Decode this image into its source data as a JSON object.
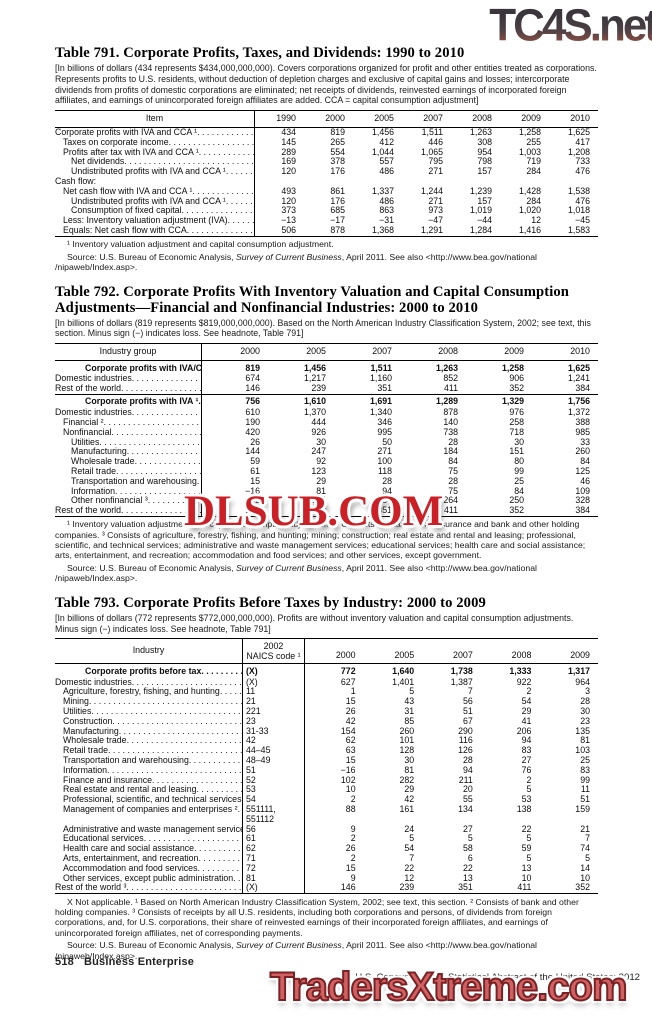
{
  "watermarks": {
    "top": "TC4S.net",
    "middle": "DLSUB.COM",
    "bottom": "TradersXtreme.com",
    "top_color_start": "#3a363b",
    "top_color_end": "#bb958e",
    "middle_color": "#cb2026",
    "bottom_color": "#cf6163",
    "bottom_outline_color": "#7a2123"
  },
  "source": {
    "pre": "Source: U.S. Bureau of Economic Analysis, ",
    "italic": "Survey of Current Business",
    "post": ", April 2011. See also <http://www.bea.gov/national /nipaweb/Index.asp>."
  },
  "table791": {
    "title": "Table 791. Corporate Profits, Taxes, and Dividends: 1990 to 2010",
    "headnote": "[In billions of dollars (434 represents $434,000,000,000). Covers corporations organized for profit and other entities treated as corporations. Represents profits to U.S. residents, without deduction of depletion charges and exclusive of capital gains and losses; intercorporate dividends from profits of domestic corporations are eliminated; net receipts of dividends, reinvested earnings of incorporated foreign affiliates, and earnings of unincorporated foreign affiliates are added. CCA = capital consumption adjustment]",
    "item_header": "Item",
    "label_w": 200,
    "years": [
      "1990",
      "2000",
      "2005",
      "2007",
      "2008",
      "2009",
      "2010"
    ],
    "rows": [
      {
        "label": "Corporate profits with IVA and CCA ¹",
        "indent": 0,
        "values": [
          "434",
          "819",
          "1,456",
          "1,511",
          "1,263",
          "1,258",
          "1,625"
        ]
      },
      {
        "label": "Taxes on corporate income",
        "indent": 1,
        "values": [
          "145",
          "265",
          "412",
          "446",
          "308",
          "255",
          "417"
        ]
      },
      {
        "label": "Profits after tax with IVA and CCA ¹",
        "indent": 1,
        "values": [
          "289",
          "554",
          "1,044",
          "1,065",
          "954",
          "1,003",
          "1,208"
        ]
      },
      {
        "label": "Net dividends",
        "indent": 2,
        "values": [
          "169",
          "378",
          "557",
          "795",
          "798",
          "719",
          "733"
        ]
      },
      {
        "label": "Undistributed profits with IVA and CCA ¹",
        "indent": 2,
        "values": [
          "120",
          "176",
          "486",
          "271",
          "157",
          "284",
          "476"
        ]
      },
      {
        "label": "Cash flow:",
        "indent": 0,
        "nodots": true,
        "values": []
      },
      {
        "label": "Net cash flow with IVA and CCA ¹",
        "indent": 1,
        "values": [
          "493",
          "861",
          "1,337",
          "1,244",
          "1,239",
          "1,428",
          "1,538"
        ]
      },
      {
        "label": "Undistributed profits with IVA and CCA ¹",
        "indent": 2,
        "values": [
          "120",
          "176",
          "486",
          "271",
          "157",
          "284",
          "476"
        ]
      },
      {
        "label": "Consumption of fixed capital",
        "indent": 2,
        "values": [
          "373",
          "685",
          "863",
          "973",
          "1,019",
          "1,020",
          "1,018"
        ]
      },
      {
        "label": "Less: Inventory valuation adjustment (IVA)",
        "indent": 1,
        "values": [
          "−13",
          "−17",
          "−31",
          "−47",
          "−44",
          "12",
          "−45"
        ]
      },
      {
        "label": "Equals: Net cash flow with CCA",
        "indent": 1,
        "values": [
          "506",
          "878",
          "1,368",
          "1,291",
          "1,284",
          "1,416",
          "1,583"
        ]
      }
    ],
    "footnote": "¹ Inventory valuation adjustment and capital consumption adjustment."
  },
  "table792": {
    "title": "Table 792. Corporate Profits With Inventory Valuation and Capital Consumption Adjustments—Financial and Nonfinancial Industries: 2000 to 2010",
    "headnote": "[In billions of dollars (819 represents $819,000,000,000). Based on the North American Industry Classification System, 2002; see text, this section. Minus sign (−) indicates loss. See headnote, Table 791]",
    "item_header": "Industry group",
    "label_w": 147,
    "years": [
      "2000",
      "2005",
      "2007",
      "2008",
      "2009",
      "2010"
    ],
    "rows": [
      {
        "label": "Corporate profits with IVA/CCA ¹",
        "indent": 3,
        "bold": true,
        "values": [
          "819",
          "1,456",
          "1,511",
          "1,263",
          "1,258",
          "1,625"
        ]
      },
      {
        "label": "Domestic industries",
        "indent": 0,
        "values": [
          "674",
          "1,217",
          "1,160",
          "852",
          "906",
          "1,241"
        ]
      },
      {
        "label": "Rest of the world",
        "indent": 0,
        "values": [
          "146",
          "239",
          "351",
          "411",
          "352",
          "384"
        ]
      },
      {
        "label": "Corporate profits with IVA ¹",
        "indent": 3,
        "bold": true,
        "rule": true,
        "values": [
          "756",
          "1,610",
          "1,691",
          "1,289",
          "1,329",
          "1,756"
        ]
      },
      {
        "label": "Domestic industries",
        "indent": 0,
        "values": [
          "610",
          "1,370",
          "1,340",
          "878",
          "976",
          "1,372"
        ]
      },
      {
        "label": "Financial ²",
        "indent": 1,
        "values": [
          "190",
          "444",
          "346",
          "140",
          "258",
          "388"
        ]
      },
      {
        "label": "Nonfinancial",
        "indent": 1,
        "values": [
          "420",
          "926",
          "995",
          "738",
          "718",
          "985"
        ]
      },
      {
        "label": "Utilities",
        "indent": 2,
        "values": [
          "26",
          "30",
          "50",
          "28",
          "30",
          "33"
        ]
      },
      {
        "label": "Manufacturing",
        "indent": 2,
        "values": [
          "144",
          "247",
          "271",
          "184",
          "151",
          "260"
        ]
      },
      {
        "label": "Wholesale trade",
        "indent": 2,
        "values": [
          "59",
          "92",
          "100",
          "84",
          "80",
          "84"
        ]
      },
      {
        "label": "Retail trade",
        "indent": 2,
        "values": [
          "61",
          "123",
          "118",
          "75",
          "99",
          "125"
        ]
      },
      {
        "label": "Transportation and warehousing",
        "indent": 2,
        "values": [
          "15",
          "29",
          "28",
          "28",
          "25",
          "46"
        ]
      },
      {
        "label": "Information",
        "indent": 2,
        "values": [
          "−16",
          "81",
          "94",
          "75",
          "84",
          "109"
        ]
      },
      {
        "label": "Other nonfinancial ³",
        "indent": 2,
        "values": [
          "132",
          "324",
          "334",
          "264",
          "250",
          "328"
        ]
      },
      {
        "label": "Rest of the world",
        "indent": 0,
        "values": [
          "146",
          "239",
          "351",
          "411",
          "352",
          "384"
        ]
      }
    ],
    "footnote": "¹ Inventory valuation adjustment and capital consumption adjustment. ² Consists of finance and insurance and bank and other holding companies. ³ Consists of agriculture, forestry, fishing, and hunting; mining; construction; real estate and rental and leasing; professional, scientific, and technical services; administrative and waste management services; educational services; health care and social assistance; arts, entertainment, and recreation; accommodation and food services; and other services, except government."
  },
  "table793": {
    "title": "Table 793. Corporate Profits Before Taxes by Industry: 2000 to 2009",
    "headnote": "[In billions of dollars (772 represents $772,000,000,000). Profits are without inventory valuation and capital consumption adjustments. Minus sign (−) indicates loss. See headnote, Table 791]",
    "item_header": "Industry",
    "naics_header": [
      "2002",
      "NAICS code ¹"
    ],
    "label_w": 188,
    "naics_w": 62,
    "years": [
      "2000",
      "2005",
      "2007",
      "2008",
      "2009"
    ],
    "rows": [
      {
        "label": "Corporate profits before tax",
        "indent": 3,
        "bold": true,
        "naics": "(X)",
        "values": [
          "772",
          "1,640",
          "1,738",
          "1,333",
          "1,317"
        ]
      },
      {
        "label": "Domestic industries",
        "indent": 0,
        "naics": "(X)",
        "values": [
          "627",
          "1,401",
          "1,387",
          "922",
          "964"
        ]
      },
      {
        "label": "Agriculture, forestry, fishing, and hunting",
        "indent": 1,
        "naics": "11",
        "values": [
          "1",
          "5",
          "7",
          "2",
          "3"
        ]
      },
      {
        "label": "Mining",
        "indent": 1,
        "naics": "21",
        "values": [
          "15",
          "43",
          "56",
          "54",
          "28"
        ]
      },
      {
        "label": "Utilities",
        "indent": 1,
        "naics": "221",
        "values": [
          "26",
          "31",
          "51",
          "29",
          "30"
        ]
      },
      {
        "label": "Construction",
        "indent": 1,
        "naics": "23",
        "values": [
          "42",
          "85",
          "67",
          "41",
          "23"
        ]
      },
      {
        "label": "Manufacturing",
        "indent": 1,
        "naics": "31-33",
        "values": [
          "154",
          "260",
          "290",
          "206",
          "135"
        ]
      },
      {
        "label": "Wholesale trade",
        "indent": 1,
        "naics": "42",
        "values": [
          "62",
          "101",
          "116",
          "94",
          "81"
        ]
      },
      {
        "label": "Retail trade",
        "indent": 1,
        "naics": "44–45",
        "values": [
          "63",
          "128",
          "126",
          "83",
          "103"
        ]
      },
      {
        "label": "Transportation and warehousing",
        "indent": 1,
        "naics": "48–49",
        "values": [
          "15",
          "30",
          "28",
          "27",
          "25"
        ]
      },
      {
        "label": "Information",
        "indent": 1,
        "naics": "51",
        "values": [
          "−16",
          "81",
          "94",
          "76",
          "83"
        ]
      },
      {
        "label": "Finance and insurance",
        "indent": 1,
        "naics": "52",
        "values": [
          "102",
          "282",
          "211",
          "2",
          "99"
        ]
      },
      {
        "label": "Real estate and rental and leasing",
        "indent": 1,
        "naics": "53",
        "values": [
          "10",
          "29",
          "20",
          "5",
          "11"
        ]
      },
      {
        "label": "Professional, scientific, and technical services",
        "indent": 1,
        "naics": "54",
        "values": [
          "2",
          "42",
          "55",
          "53",
          "51"
        ]
      },
      {
        "label": "Management of companies and enterprises ²",
        "indent": 1,
        "naics": "551111, 551112",
        "values": [
          "88",
          "161",
          "134",
          "138",
          "159"
        ]
      },
      {
        "label": "Administrative and waste management services",
        "indent": 1,
        "naics": "56",
        "values": [
          "9",
          "24",
          "27",
          "22",
          "21"
        ]
      },
      {
        "label": "Educational services",
        "indent": 1,
        "naics": "61",
        "values": [
          "2",
          "5",
          "5",
          "5",
          "7"
        ]
      },
      {
        "label": "Health care and social assistance",
        "indent": 1,
        "naics": "62",
        "values": [
          "26",
          "54",
          "58",
          "59",
          "74"
        ]
      },
      {
        "label": "Arts, entertainment, and recreation",
        "indent": 1,
        "naics": "71",
        "values": [
          "2",
          "7",
          "6",
          "5",
          "5"
        ]
      },
      {
        "label": "Accommodation and food services",
        "indent": 1,
        "naics": "72",
        "values": [
          "15",
          "22",
          "22",
          "13",
          "14"
        ]
      },
      {
        "label": "Other services, except public administration",
        "indent": 1,
        "naics": "81",
        "values": [
          "9",
          "12",
          "13",
          "10",
          "10"
        ]
      },
      {
        "label": "Rest of the world ³",
        "indent": 0,
        "naics": "(X)",
        "values": [
          "146",
          "239",
          "351",
          "411",
          "352"
        ]
      }
    ],
    "footnote": "X Not applicable. ¹ Based on North American Industry Classification System, 2002; see text, this section. ² Consists of bank and other holding companies. ³ Consists of receipts by all U.S. residents, including both corporations and persons, of dividends from foreign corporations, and, for U.S. corporations, their share of reinvested earnings of their incorporated foreign affiliates, and earnings of unincorporated foreign affiliates, net of corresponding payments."
  },
  "footer": {
    "page_number": "518",
    "section": "Business Enterprise",
    "credit": "U.S. Census Bureau, Statistical Abstract of the United States: 2012"
  }
}
